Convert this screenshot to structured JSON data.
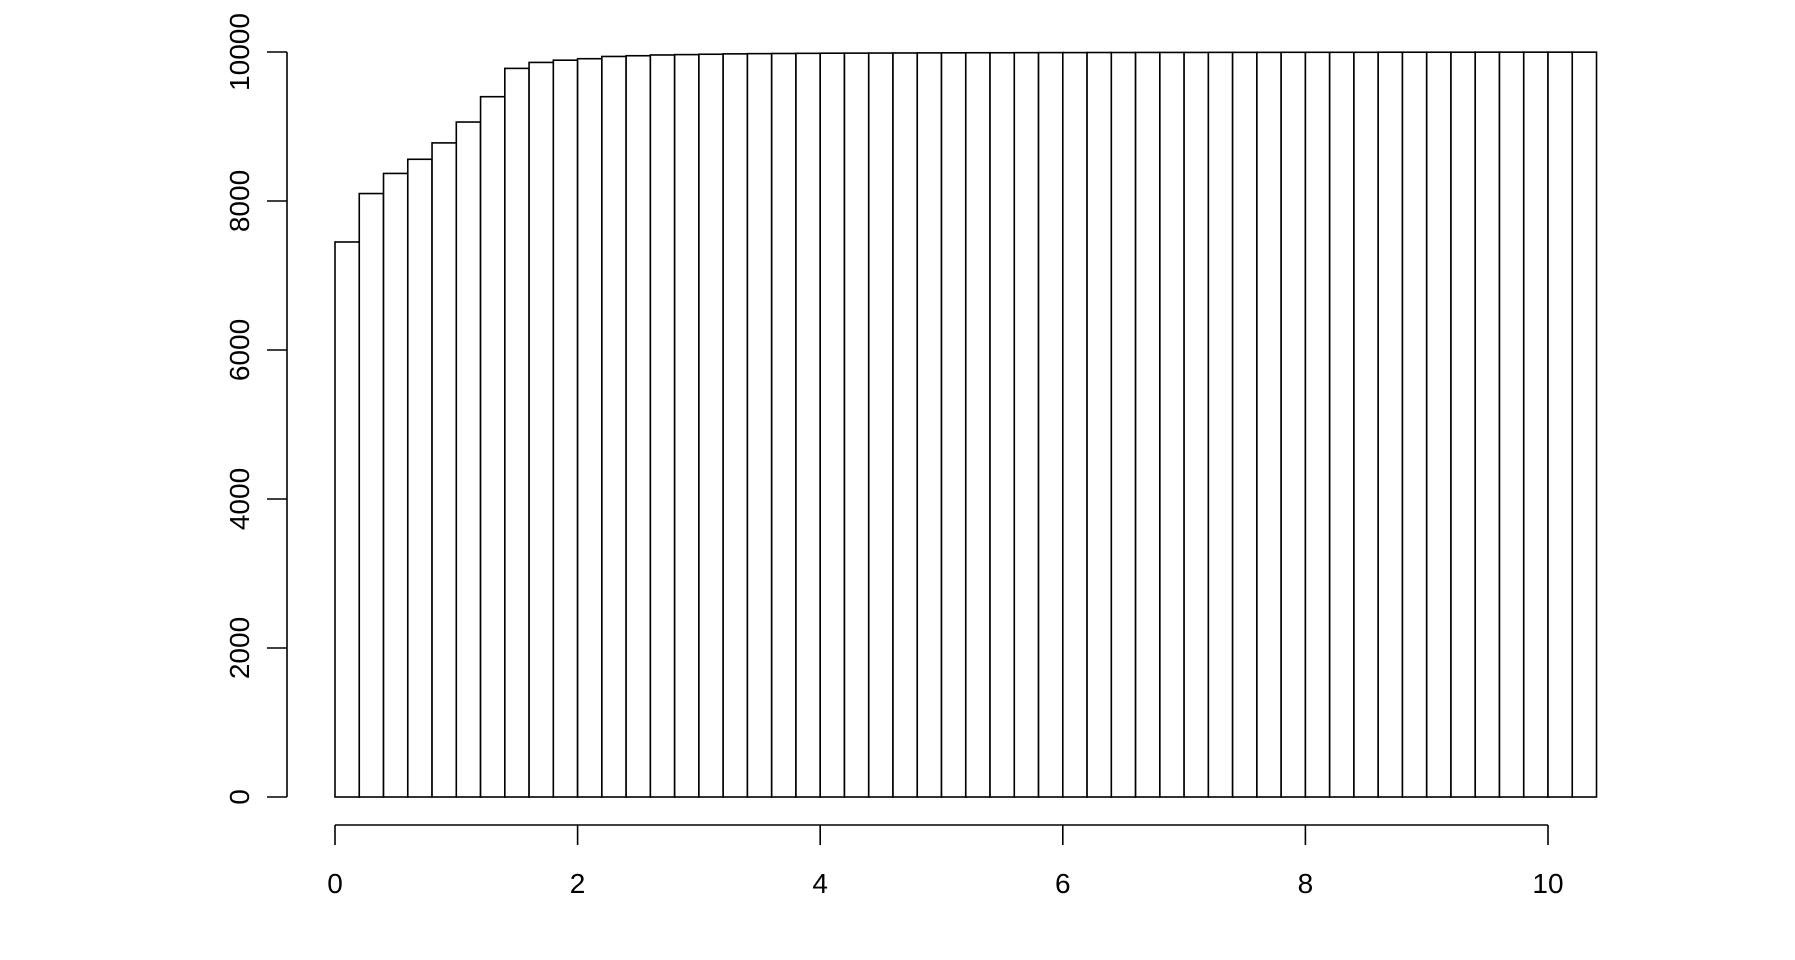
{
  "chart_data": {
    "type": "bar",
    "title": "",
    "xlabel": "",
    "ylabel": "",
    "bin_width": 0.2,
    "x_start": 0,
    "values": [
      7450,
      8100,
      8370,
      8560,
      8780,
      9060,
      9400,
      9780,
      9860,
      9890,
      9910,
      9940,
      9950,
      9960,
      9965,
      9970,
      9975,
      9978,
      9980,
      9982,
      9984,
      9985,
      9986,
      9987,
      9988,
      9989,
      9990,
      9990,
      9991,
      9992,
      9992,
      9993,
      9993,
      9994,
      9994,
      9994,
      9995,
      9995,
      9995,
      9996,
      9996,
      9996,
      9996,
      9997,
      9997,
      9997,
      9997,
      9998,
      9998,
      9998,
      9998,
      9998
    ],
    "xlim": [
      0,
      10
    ],
    "ylim": [
      0,
      10000
    ],
    "x_ticks": [
      "0",
      "2",
      "4",
      "6",
      "8",
      "10"
    ],
    "y_ticks": [
      "0",
      "2000",
      "4000",
      "6000",
      "8000",
      "10000"
    ],
    "grid": false,
    "bar_fill": "#ffffff",
    "bar_stroke": "#000000"
  }
}
